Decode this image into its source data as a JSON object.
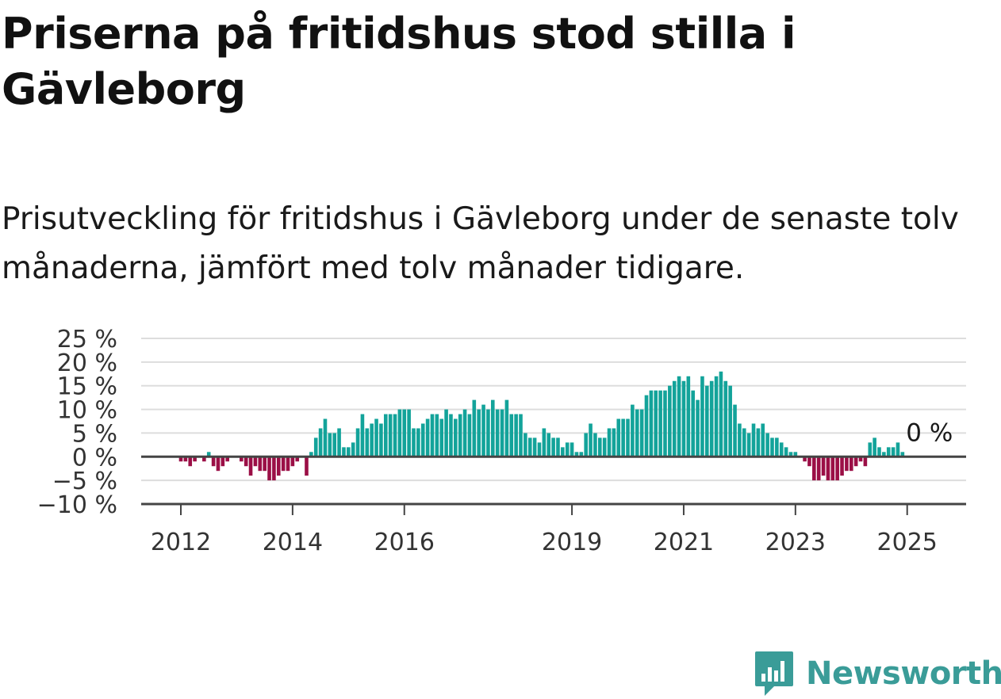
{
  "header": {
    "title": "Priserna på fritidshus stod stilla i Gävleborg",
    "subtitle": "Prisutveckling för fritidshus i Gävleborg under de senaste tolv månaderna, jämfört med tolv månader tidigare."
  },
  "brand": {
    "name": "Newsworthy",
    "icon": "newsworthy-logo-icon",
    "color": "#3a9c98"
  },
  "colors": {
    "positive": "#13a39a",
    "negative": "#9b0f46",
    "grid": "#dddddd",
    "zero": "#444444"
  },
  "chart_data": {
    "type": "bar",
    "title": "Priserna på fritidshus stod stilla i Gävleborg",
    "subtitle": "Prisutveckling för fritidshus i Gävleborg under de senaste tolv månaderna, jämfört med tolv månader tidigare.",
    "xlabel": "",
    "ylabel": "",
    "ylim": [
      -10,
      25
    ],
    "y_ticks": [
      25,
      20,
      15,
      10,
      5,
      0,
      -5,
      -10
    ],
    "y_tick_labels": [
      "25 %",
      "20 %",
      "15 %",
      "10 %",
      "5 %",
      "0 %",
      "−5 %",
      "−10 %"
    ],
    "x_ticks": [
      "2012",
      "2014",
      "2016",
      "2019",
      "2021",
      "2023",
      "2025"
    ],
    "grid": true,
    "start_month": "2012-01",
    "values": [
      -1,
      -1,
      -2,
      -1,
      0,
      -1,
      1,
      -2,
      -3,
      -2,
      -1,
      0,
      0,
      -1,
      -2,
      -4,
      -2,
      -3,
      -3,
      -5,
      -5,
      -4,
      -3,
      -3,
      -2,
      -1,
      0,
      -4,
      1,
      4,
      6,
      8,
      5,
      5,
      6,
      2,
      2,
      3,
      6,
      9,
      6,
      7,
      8,
      7,
      9,
      9,
      9,
      10,
      10,
      10,
      6,
      6,
      7,
      8,
      9,
      9,
      8,
      10,
      9,
      8,
      9,
      10,
      9,
      12,
      10,
      11,
      10,
      12,
      10,
      10,
      12,
      9,
      9,
      9,
      5,
      4,
      4,
      3,
      6,
      5,
      4,
      4,
      2,
      3,
      3,
      1,
      1,
      5,
      7,
      5,
      4,
      4,
      6,
      6,
      8,
      8,
      8,
      11,
      10,
      10,
      13,
      14,
      14,
      14,
      14,
      15,
      16,
      17,
      16,
      17,
      14,
      12,
      17,
      15,
      16,
      17,
      18,
      16,
      15,
      11,
      7,
      6,
      5,
      7,
      6,
      7,
      5,
      4,
      4,
      3,
      2,
      1,
      1,
      0,
      -1,
      -2,
      -5,
      -5,
      -4,
      -5,
      -5,
      -5,
      -4,
      -3,
      -3,
      -2,
      -1,
      -2,
      3,
      4,
      2,
      1,
      2,
      2,
      3,
      1
    ],
    "annotation": {
      "label": "0 %",
      "value": 0
    }
  }
}
